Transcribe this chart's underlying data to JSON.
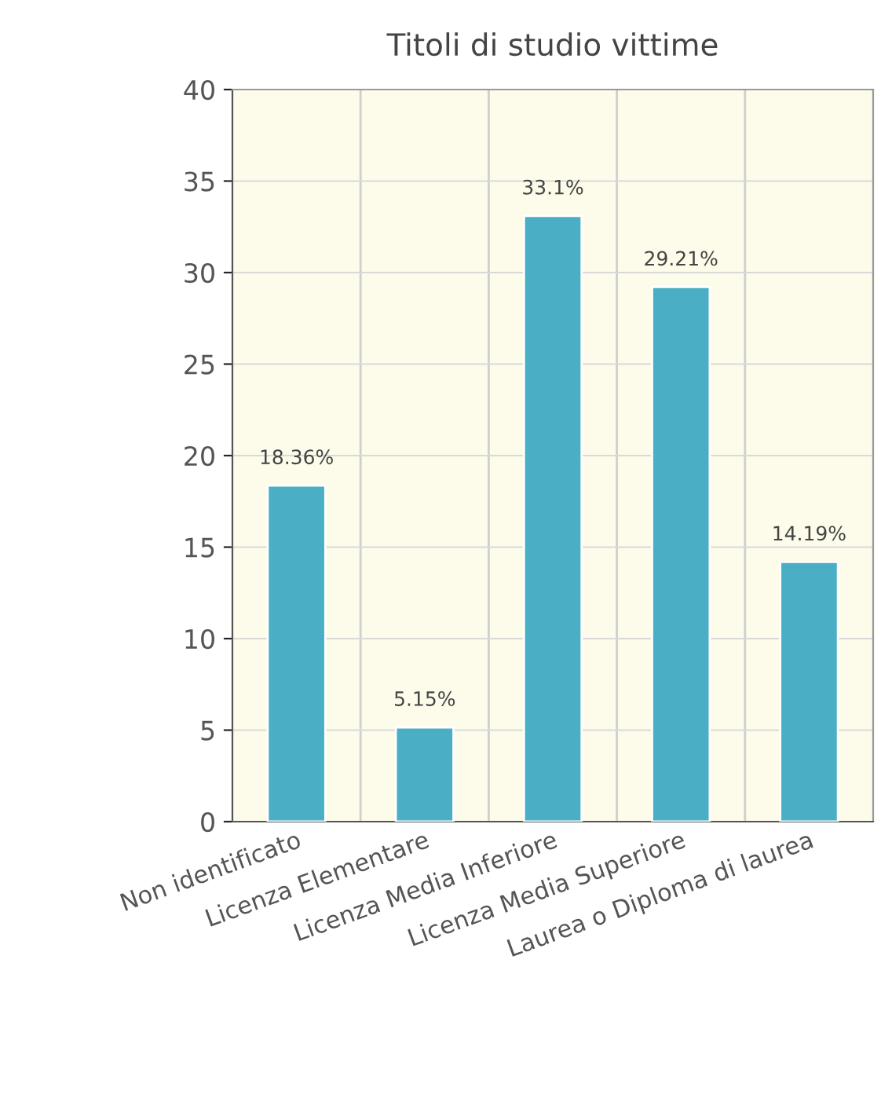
{
  "chart_data": {
    "type": "bar",
    "title": "Titoli di studio vittime",
    "categories": [
      "Non identificato",
      "Licenza Elementare",
      "Licenza Media Inferiore",
      "Licenza Media Superiore",
      "Laurea o Diploma di laurea"
    ],
    "values": [
      18.36,
      5.15,
      33.1,
      29.21,
      14.19
    ],
    "value_labels": [
      "18.36%",
      "5.15%",
      "33.1%",
      "29.21%",
      "14.19%"
    ],
    "color": "#4aafc4",
    "ylim": [
      0,
      40
    ],
    "yticks": [
      0,
      5,
      10,
      15,
      20,
      25,
      30,
      35,
      40
    ],
    "grid": true,
    "legend": false
  }
}
